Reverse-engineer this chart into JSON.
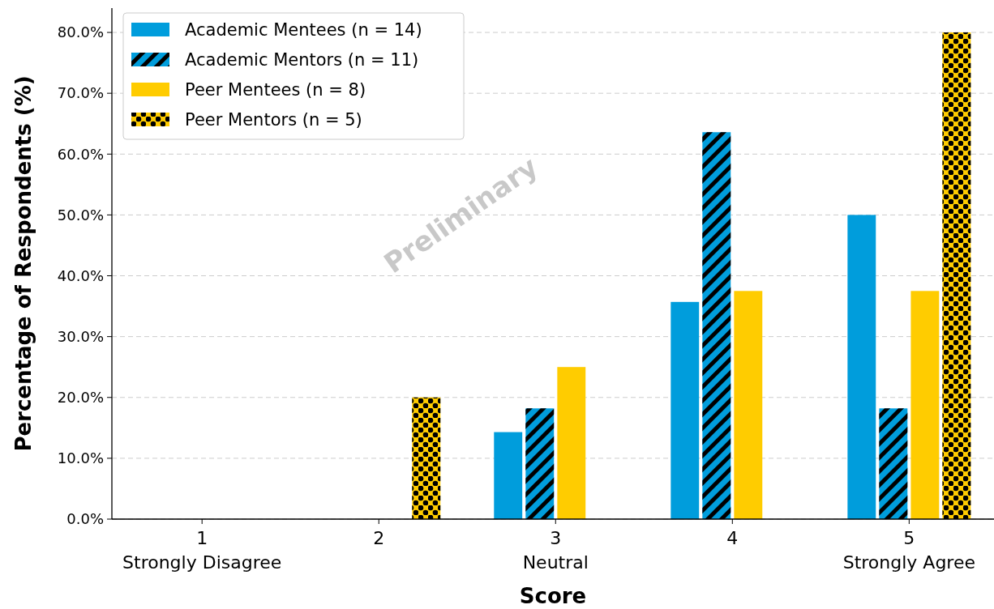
{
  "chart_data": {
    "type": "bar",
    "xlabel": "Score",
    "ylabel": "Percentage of Respondents (%)",
    "categories": [
      "1\nStrongly Disagree",
      "2",
      "3\nNeutral",
      "4",
      "5\nStrongly Agree"
    ],
    "series": [
      {
        "name": "Academic Mentees (n = 14)",
        "color": "#009ddc",
        "values": [
          0,
          0,
          14.3,
          35.7,
          50.0
        ]
      },
      {
        "name": "Academic Mentors (n = 11)",
        "color": "#009ddc",
        "values": [
          0,
          0,
          18.2,
          63.6,
          18.2
        ]
      },
      {
        "name": "Peer Mentees (n = 8)",
        "color": "#ffcc00",
        "values": [
          0,
          0,
          25.0,
          37.5,
          37.5
        ]
      },
      {
        "name": "Peer Mentors (n = 5)",
        "color": "#ffcc00",
        "values": [
          0,
          20.0,
          0,
          0,
          80.0
        ]
      }
    ],
    "ylim": [
      0,
      84
    ],
    "yticks": [
      {
        "value": 0,
        "label": "0.0%"
      },
      {
        "value": 10,
        "label": "10.0%"
      },
      {
        "value": 20,
        "label": "20.0%"
      },
      {
        "value": 30,
        "label": "30.0%"
      },
      {
        "value": 40,
        "label": "40.0%"
      },
      {
        "value": 50,
        "label": "50.0%"
      },
      {
        "value": 60,
        "label": "60.0%"
      },
      {
        "value": 70,
        "label": "70.0%"
      },
      {
        "value": 80,
        "label": "80.0%"
      }
    ],
    "grid": "y",
    "legend": "top left",
    "annotations": [
      "Preliminary"
    ]
  }
}
